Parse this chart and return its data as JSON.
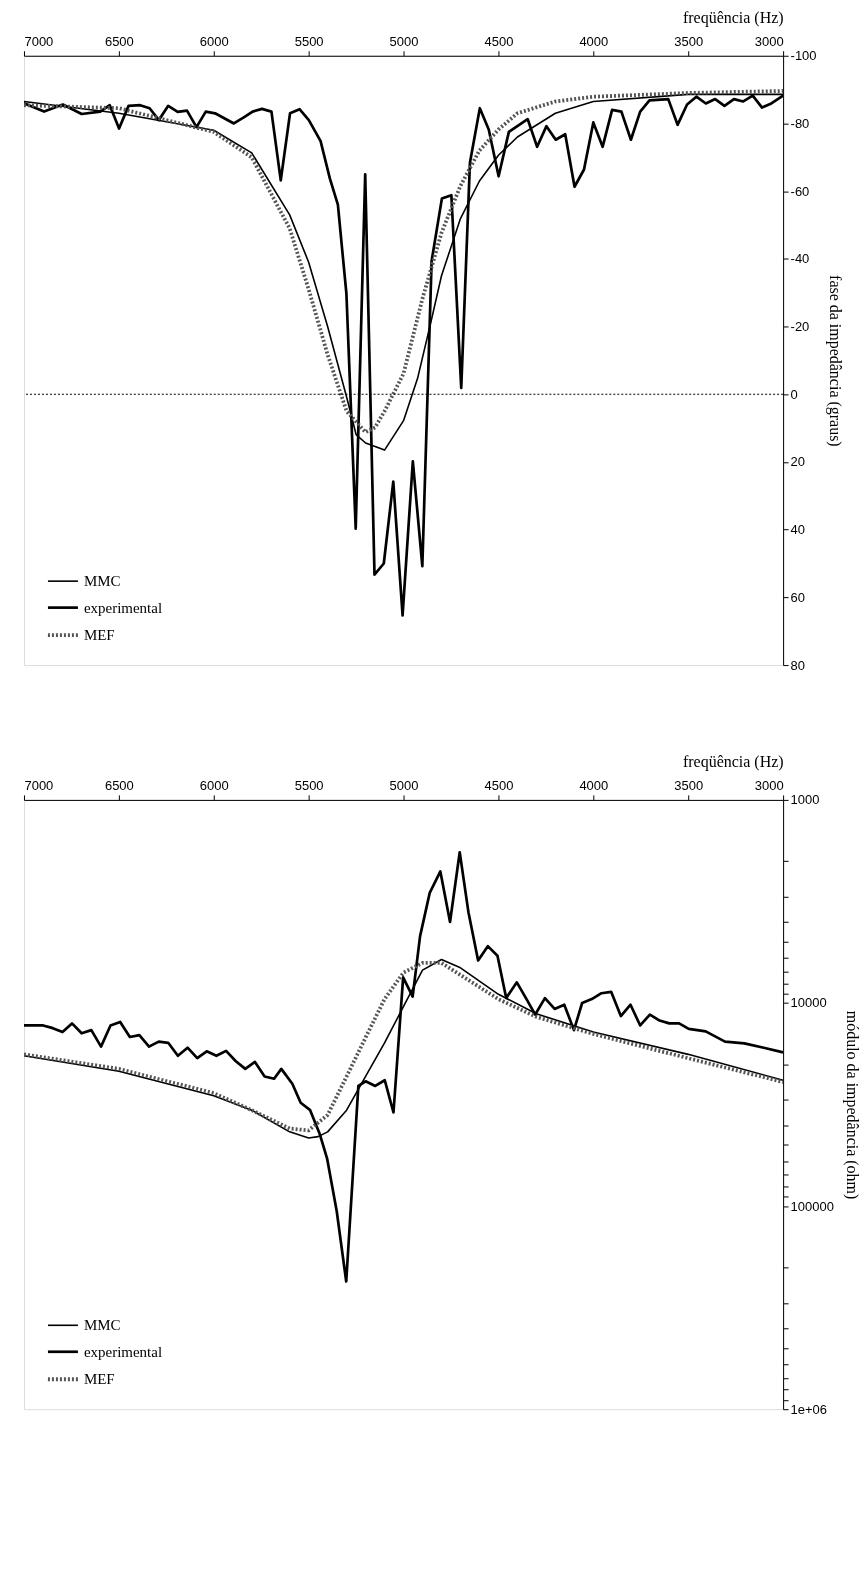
{
  "chart_data": [
    {
      "type": "line",
      "xlabel": "freqüência (Hz)",
      "ylabel": "fase da impedância (graus)",
      "xlim": [
        7000,
        3000
      ],
      "xticks": [
        7000,
        6500,
        6000,
        5500,
        5000,
        4500,
        4000,
        3500,
        3000
      ],
      "ylim": [
        80,
        -100
      ],
      "yticks": [
        80,
        60,
        40,
        20,
        0,
        -20,
        -40,
        -60,
        -80,
        -100
      ],
      "legend": "bottom left",
      "grid": false,
      "ref_lines": [
        {
          "axis": "y",
          "value": 0,
          "color": "#000000",
          "line_style": "dotted"
        }
      ],
      "series": [
        {
          "name": "MMC",
          "color": "#000000",
          "line_style": "solid",
          "x": [
            7000,
            6500,
            6000,
            5800,
            5600,
            5500,
            5400,
            5300,
            5250,
            5200,
            5150,
            5100,
            5000,
            4926,
            4850,
            4800,
            4700,
            4600,
            4500,
            4400,
            4200,
            4000,
            3500,
            3000
          ],
          "values": [
            -86.5,
            -83,
            -78,
            -71.3,
            -53,
            -39,
            -20,
            0.8,
            11.9,
            14.4,
            15.4,
            16.5,
            7.8,
            -4.7,
            -22.7,
            -35,
            -51.9,
            -63,
            -70.6,
            -76,
            -83,
            -86.5,
            -88.6,
            -88.6
          ]
        },
        {
          "name": "experimental",
          "color": "#000000",
          "line_style": "solid",
          "x": [
            7000,
            6894,
            6795,
            6696,
            6598,
            6548,
            6499,
            6449,
            6388,
            6338,
            6289,
            6240,
            6190,
            6141,
            6091,
            6042,
            5993,
            5894,
            5844,
            5795,
            5746,
            5696,
            5647,
            5598,
            5548,
            5499,
            5437,
            5388,
            5346,
            5301,
            5252,
            5202,
            5153,
            5104,
            5054,
            5005,
            4951,
            4901,
            4852,
            4798,
            4748,
            4696,
            4650,
            4598,
            4551,
            4499,
            4445,
            4346,
            4296,
            4247,
            4198,
            4148,
            4099,
            4049,
            4000,
            3951,
            3901,
            3852,
            3802,
            3753,
            3704,
            3605,
            3556,
            3506,
            3457,
            3407,
            3358,
            3309,
            3259,
            3210,
            3160,
            3111,
            3062,
            3000
          ],
          "values": [
            -86,
            -83.5,
            -85.6,
            -82.8,
            -83.5,
            -85.4,
            -78.5,
            -85.2,
            -85.4,
            -84.5,
            -81,
            -85.2,
            -83.4,
            -83.8,
            -78.9,
            -83.5,
            -83,
            -80,
            -81.7,
            -83.5,
            -84.3,
            -83.5,
            -63.2,
            -83,
            -84.2,
            -81,
            -74.8,
            -63.7,
            -56,
            -29.7,
            39.7,
            -65,
            53.3,
            50,
            25.8,
            65.3,
            19.8,
            50.8,
            -39.4,
            -57.8,
            -58.8,
            -1.9,
            -68.5,
            -84.5,
            -78.2,
            -64.4,
            -77.5,
            -81.3,
            -73.1,
            -79.2,
            -75.2,
            -76.8,
            -61.3,
            -66.4,
            -80.3,
            -73.1,
            -84,
            -83.5,
            -75.2,
            -83.5,
            -86.8,
            -87.2,
            -79.6,
            -85.6,
            -87.9,
            -85.9,
            -87.2,
            -85.2,
            -87.2,
            -86.5,
            -88.2,
            -84.7,
            -85.9,
            -88.2
          ]
        },
        {
          "name": "MEF",
          "color": "#555555",
          "line_style": "dotted",
          "x": [
            7000,
            6500,
            6000,
            5800,
            5600,
            5500,
            5400,
            5300,
            5200,
            5150,
            5100,
            5000,
            4900,
            4800,
            4700,
            4600,
            4500,
            4400,
            4200,
            4000,
            3500,
            3000
          ],
          "values": [
            -85.4,
            -84.5,
            -77.5,
            -70,
            -49,
            -31,
            -11.7,
            5,
            11.2,
            9.8,
            5,
            -6.1,
            -28.3,
            -47.7,
            -61.6,
            -72,
            -78.2,
            -83,
            -86.5,
            -87.9,
            -89,
            -89.6
          ]
        }
      ]
    },
    {
      "type": "line",
      "xlabel": "freqüência (Hz)",
      "ylabel": "módulo da impedância (ohm)",
      "log": "y",
      "xlim": [
        7000,
        3000
      ],
      "xticks": [
        7000,
        6500,
        6000,
        5500,
        5000,
        4500,
        4000,
        3500,
        3000
      ],
      "ylim": [
        1000000,
        1000
      ],
      "yticks": [
        {
          "value": 1000000,
          "label": "1e+06"
        },
        {
          "value": 900000,
          "label": null
        },
        {
          "value": 800000,
          "label": null
        },
        {
          "value": 700000,
          "label": null
        },
        {
          "value": 600000,
          "label": null
        },
        {
          "value": 500000,
          "label": null
        },
        {
          "value": 400000,
          "label": null
        },
        {
          "value": 300000,
          "label": null
        },
        {
          "value": 200000,
          "label": null
        },
        100000,
        {
          "value": 90000,
          "label": null
        },
        {
          "value": 80000,
          "label": null
        },
        {
          "value": 70000,
          "label": null
        },
        {
          "value": 60000,
          "label": null
        },
        {
          "value": 50000,
          "label": null
        },
        {
          "value": 40000,
          "label": null
        },
        {
          "value": 30000,
          "label": null
        },
        {
          "value": 20000,
          "label": null
        },
        10000,
        {
          "value": 9000,
          "label": null
        },
        {
          "value": 8000,
          "label": null
        },
        {
          "value": 7000,
          "label": null
        },
        {
          "value": 6000,
          "label": null
        },
        {
          "value": 5000,
          "label": null
        },
        {
          "value": 4000,
          "label": null
        },
        {
          "value": 3000,
          "label": null
        },
        {
          "value": 2000,
          "label": null
        },
        1000
      ],
      "legend": "bottom left",
      "grid": false,
      "series": [
        {
          "name": "MMC",
          "color": "#000000",
          "line_style": "solid",
          "x": [
            7000,
            6500,
            6000,
            5800,
            5600,
            5500,
            5450,
            5400,
            5300,
            5200,
            5100,
            5000,
            4900,
            4800,
            4700,
            4500,
            4300,
            4000,
            3500,
            3000
          ],
          "values": [
            18200,
            21700,
            28600,
            33700,
            43100,
            46200,
            45500,
            43100,
            33700,
            23000,
            15700,
            10400,
            6890,
            6110,
            6710,
            9060,
            11300,
            13900,
            17900,
            24000
          ]
        },
        {
          "name": "experimental",
          "color": "#000000",
          "line_style": "solid",
          "x": [
            7000,
            6899,
            6848,
            6797,
            6747,
            6696,
            6645,
            6594,
            6544,
            6493,
            6442,
            6392,
            6341,
            6290,
            6240,
            6189,
            6138,
            6087,
            6037,
            5986,
            5935,
            5885,
            5834,
            5783,
            5732,
            5682,
            5644,
            5586,
            5542,
            5492,
            5441,
            5403,
            5352,
            5302,
            5238,
            5200,
            5149,
            5099,
            5053,
            5002,
            4952,
            4913,
            4862,
            4806,
            4755,
            4704,
            4658,
            4607,
            4556,
            4505,
            4459,
            4403,
            4352,
            4306,
            4255,
            4204,
            4153,
            4102,
            4059,
            4008,
            3957,
            3906,
            3855,
            3804,
            3753,
            3702,
            3651,
            3600,
            3548,
            3497,
            3408,
            3306,
            3204,
            3102,
            3000
          ],
          "values": [
            12900,
            12900,
            13300,
            13900,
            12600,
            14100,
            13600,
            16400,
            12900,
            12400,
            14700,
            14400,
            16400,
            15500,
            15700,
            18200,
            16600,
            18700,
            17300,
            18200,
            17200,
            19300,
            21100,
            19500,
            23000,
            23600,
            21100,
            25000,
            31000,
            33700,
            44300,
            58200,
            106000,
            235000,
            25600,
            24300,
            25600,
            24000,
            34600,
            7480,
            9310,
            4700,
            2870,
            2250,
            3990,
            1810,
            3570,
            6180,
            5250,
            5850,
            9460,
            7910,
            9570,
            11400,
            9460,
            10700,
            10200,
            13600,
            10000,
            9570,
            8950,
            8810,
            11600,
            10200,
            12900,
            11400,
            12200,
            12600,
            12600,
            13400,
            13800,
            15500,
            15800,
            16600,
            17500
          ]
        },
        {
          "name": "MEF",
          "color": "#555555",
          "line_style": "dotted",
          "x": [
            7000,
            6500,
            6000,
            5800,
            5600,
            5500,
            5400,
            5300,
            5200,
            5100,
            5000,
            4900,
            4800,
            4700,
            4500,
            4300,
            4000,
            3500,
            3000
          ],
          "values": [
            17900,
            21100,
            27800,
            33700,
            41500,
            42400,
            35600,
            23000,
            14800,
            9570,
            7080,
            6350,
            6350,
            7280,
            9570,
            11700,
            14200,
            18700,
            24500
          ]
        }
      ]
    }
  ]
}
